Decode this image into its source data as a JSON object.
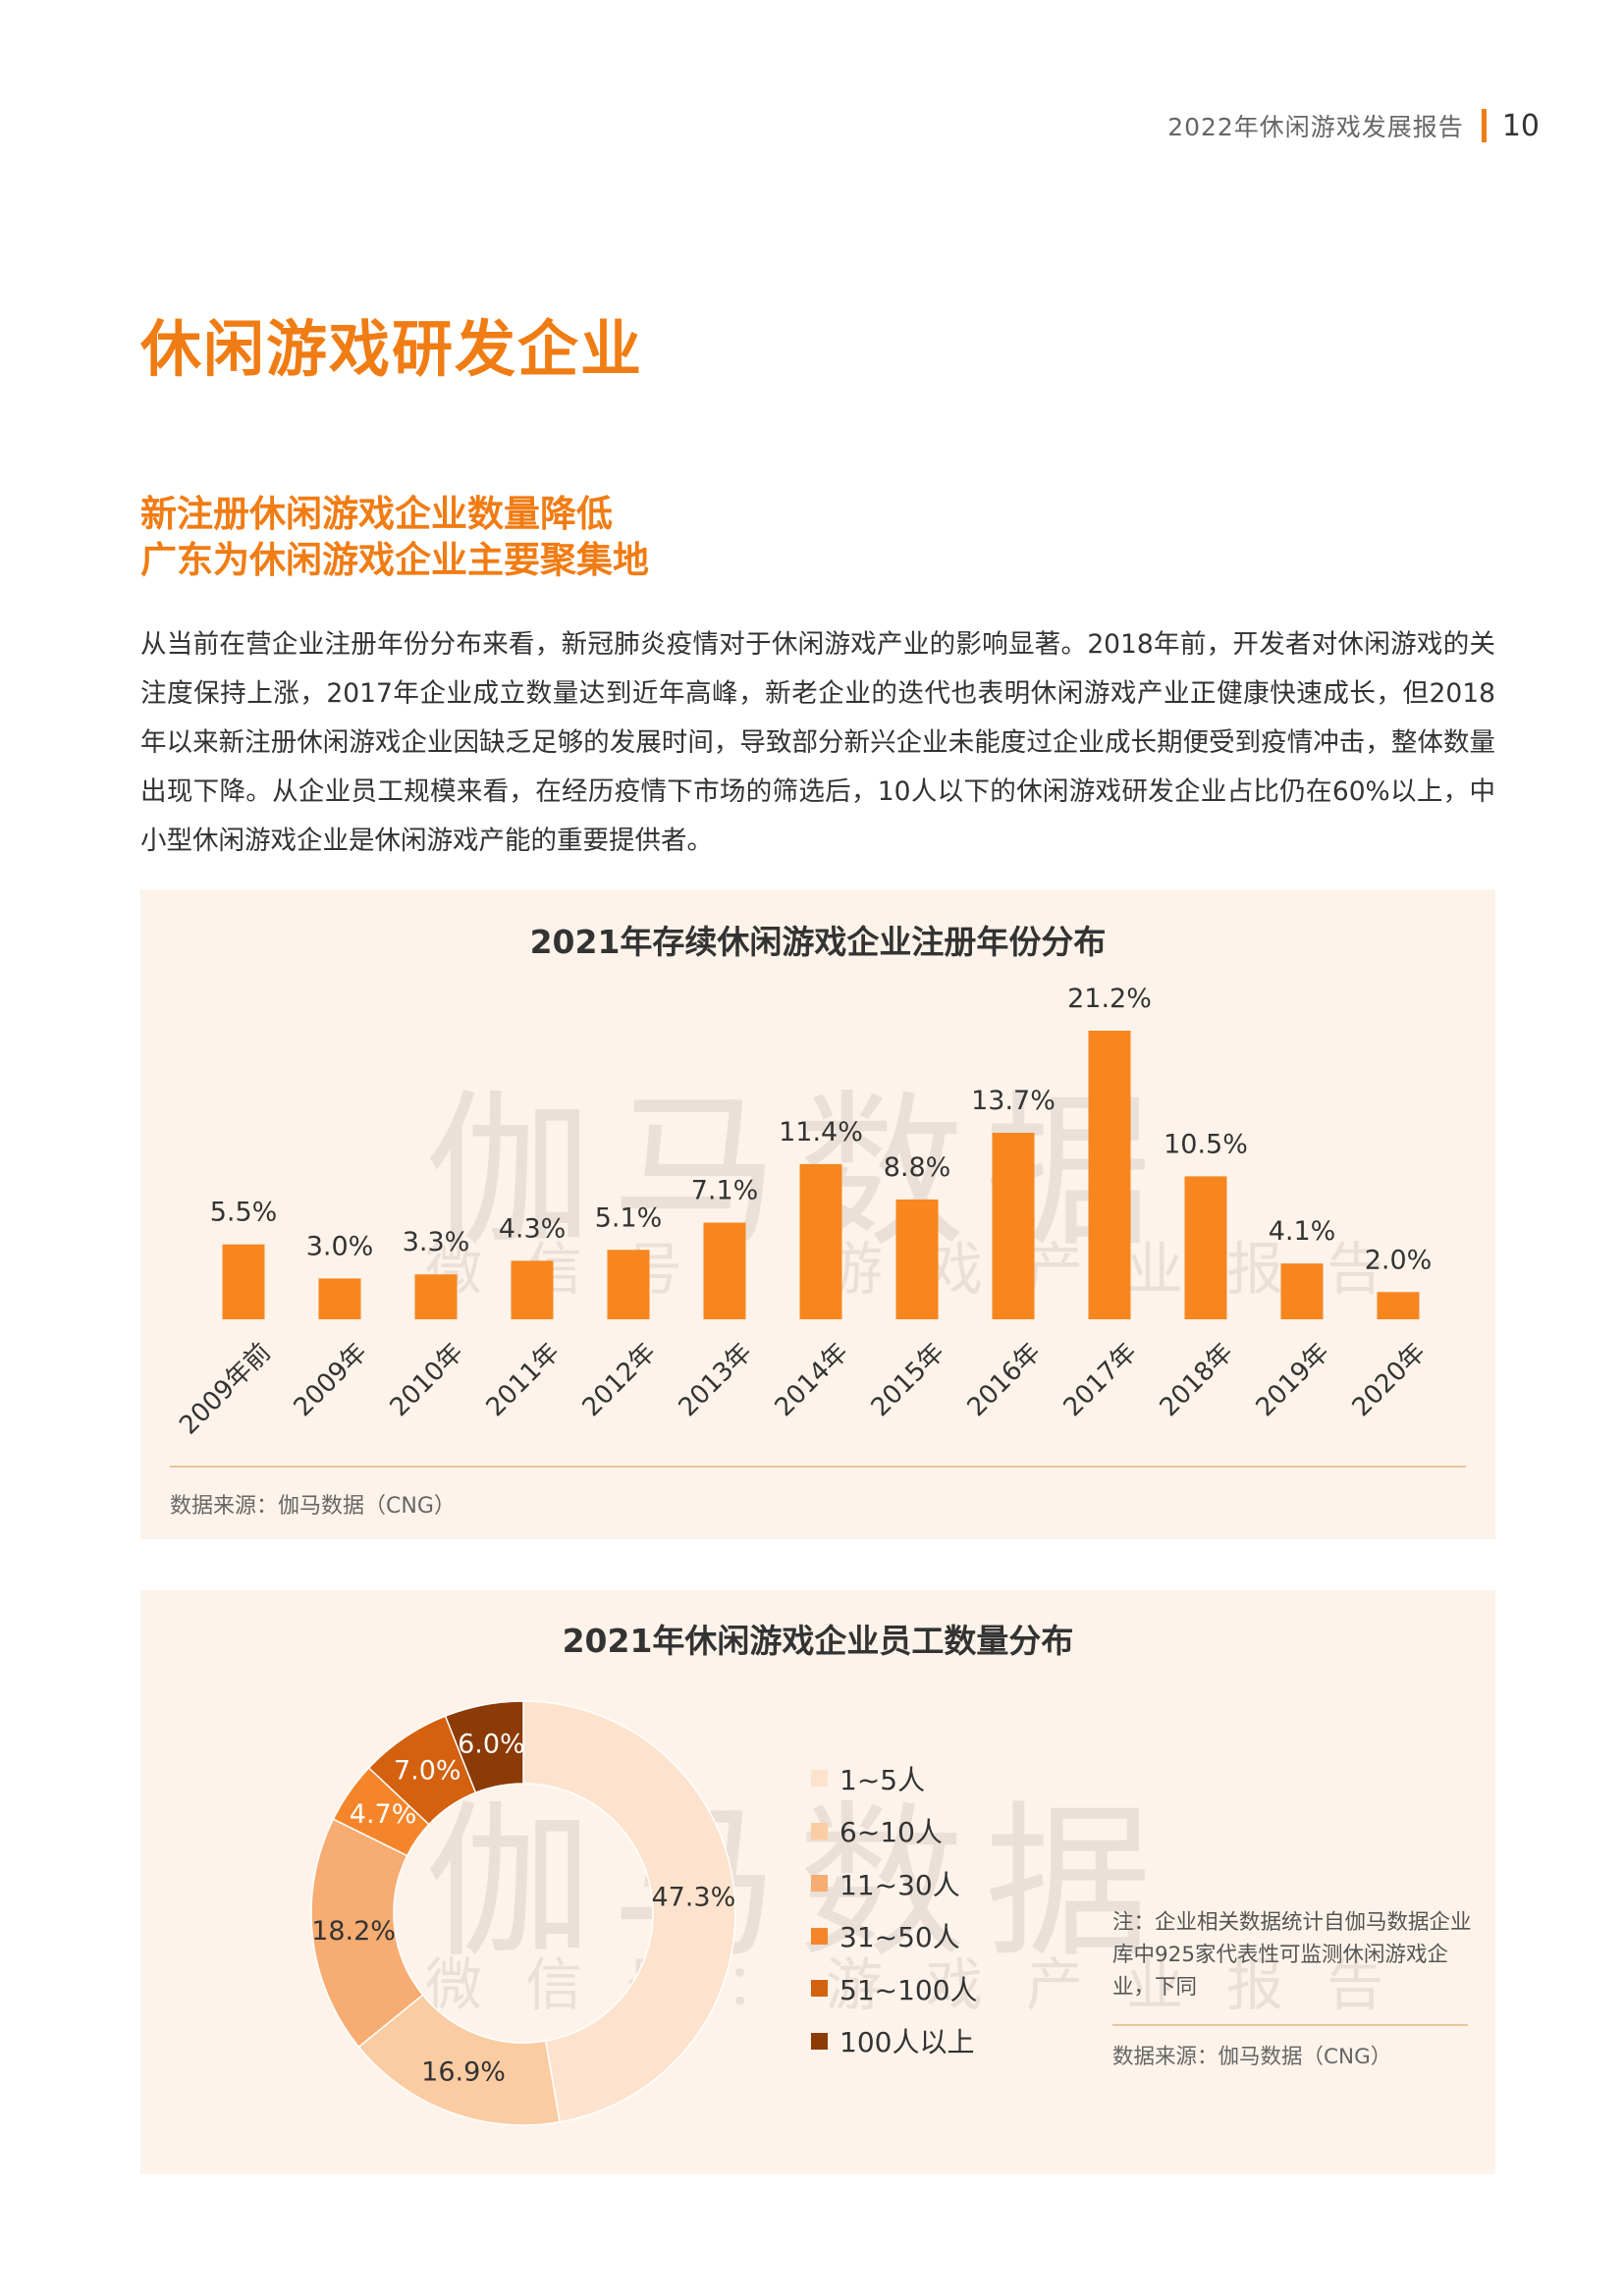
{
  "header": {
    "title": "2022年休闲游戏发展报告",
    "page": "10"
  },
  "section_title": "休闲游戏研发企业",
  "subtitle": {
    "line1": "新注册休闲游戏企业数量降低",
    "line2": "广东为休闲游戏企业主要聚集地"
  },
  "body_text": "从当前在营企业注册年份分布来看，新冠肺炎疫情对于休闲游戏产业的影响显著。2018年前，开发者对休闲游戏的关注度保持上涨，2017年企业成立数量达到近年高峰，新老企业的迭代也表明休闲游戏产业正健康快速成长，但2018年以来新注册休闲游戏企业因缺乏足够的发展时间，导致部分新兴企业未能度过企业成长期便受到疫情冲击，整体数量出现下降。从企业员工规模来看，在经历疫情下市场的筛选后，10人以下的休闲游戏研发企业占比仍在60%以上，中小型休闲游戏企业是休闲游戏产能的重要提供者。",
  "watermark": {
    "big": "伽马数据",
    "small": "微信号：游戏产业报告"
  },
  "colors": {
    "accent": "#f07c14",
    "panel_bg": "#fdf3ea"
  },
  "chart_data": [
    {
      "type": "bar",
      "title": "2021年存续休闲游戏企业注册年份分布",
      "categories": [
        "2009年前",
        "2009年",
        "2010年",
        "2011年",
        "2012年",
        "2013年",
        "2014年",
        "2015年",
        "2016年",
        "2017年",
        "2018年",
        "2019年",
        "2020年"
      ],
      "values": [
        5.5,
        3.0,
        3.3,
        4.3,
        5.1,
        7.1,
        11.4,
        8.8,
        13.7,
        21.2,
        10.5,
        4.1,
        2.0
      ],
      "value_labels": [
        "5.5%",
        "3.0%",
        "3.3%",
        "4.3%",
        "5.1%",
        "7.1%",
        "11.4%",
        "8.8%",
        "13.7%",
        "21.2%",
        "10.5%",
        "4.1%",
        "2.0%"
      ],
      "unit": "%",
      "ylim": [
        0,
        21.2
      ],
      "grid": false,
      "color": "#f7861e",
      "source": "数据来源：伽马数据（CNG）"
    },
    {
      "type": "pie",
      "title": "2021年休闲游戏企业员工数量分布",
      "donut": true,
      "labels": [
        "1~5人",
        "6~10人",
        "11~30人",
        "31~50人",
        "51~100人",
        "100人以上"
      ],
      "values": [
        47.3,
        16.9,
        18.2,
        4.7,
        7.0,
        6.0
      ],
      "value_labels": [
        "47.3%",
        "16.9%",
        "18.2%",
        "4.7%",
        "7.0%",
        "6.0%"
      ],
      "colors": [
        "#fde3cd",
        "#fbcba2",
        "#f7ac72",
        "#f5852a",
        "#d4610f",
        "#8c3b06"
      ],
      "legend_position": "right",
      "note": "注：企业相关数据统计自伽马数据企业库中925家代表性可监测休闲游戏企业，下同",
      "source": "数据来源：伽马数据（CNG）"
    }
  ]
}
